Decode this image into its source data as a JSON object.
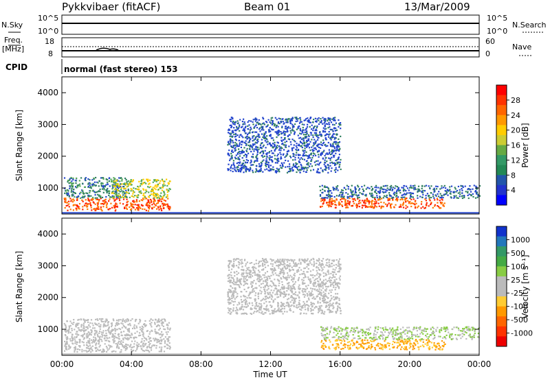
{
  "header": {
    "radar_title": "Pykkvibaer (fitACF)",
    "beam": "Beam 01",
    "date": "13/Mar/2009"
  },
  "panels": {
    "nsky": {
      "left_label": "N.Sky",
      "left_ticks": [
        "10^5",
        "10^0"
      ],
      "right_ticks": [
        "10^5",
        "10^0"
      ],
      "right_label": "N.Search"
    },
    "freq": {
      "left_label_line1": "Freq.",
      "left_label_line2": "[MHz]",
      "left_ticks": [
        "18",
        "8"
      ],
      "right_ticks": [
        "60",
        "0"
      ],
      "right_label": "Nave"
    },
    "cpid": {
      "label": "CPID",
      "text": "normal (fast stereo) 153"
    }
  },
  "axes": {
    "y_label": "Slant Range [km]",
    "y_ticks": [
      "4000",
      "3000",
      "2000",
      "1000"
    ],
    "x_label": "Time UT",
    "x_ticks": [
      "00:00",
      "04:00",
      "08:00",
      "12:00",
      "16:00",
      "20:00",
      "00:00"
    ]
  },
  "colorbars": {
    "power": {
      "label": "Power [dB]",
      "ticks": [
        "28",
        "24",
        "20",
        "16",
        "12",
        "8",
        "4"
      ],
      "colors": [
        "#ff0000",
        "#ff3300",
        "#ff6600",
        "#ff9900",
        "#ffcc00",
        "#cccc33",
        "#66aa44",
        "#339966",
        "#228855",
        "#2255aa",
        "#2233cc",
        "#0000ff"
      ]
    },
    "velocity": {
      "label": "Velocity [m s⁻¹]",
      "ticks": [
        "1000",
        "500",
        "100",
        "25",
        "-25",
        "-100",
        "-500",
        "-1000"
      ],
      "colors": [
        "#1133cc",
        "#2277bb",
        "#339966",
        "#44aa44",
        "#88cc44",
        "#bbbbbb",
        "#bbbbbb",
        "#ffcc33",
        "#ff9900",
        "#ff6600",
        "#ff3300",
        "#ee0000"
      ]
    }
  },
  "chart_data": [
    {
      "type": "heatmap",
      "quantity": "power",
      "xlim": [
        0,
        24
      ],
      "ylim": [
        180,
        4500
      ],
      "regions": [
        {
          "t0": 0.1,
          "t1": 6.2,
          "r0": 300,
          "r1": 700,
          "value": 24
        },
        {
          "t0": 0.1,
          "t1": 3.8,
          "r0": 700,
          "r1": 1350,
          "value": 10
        },
        {
          "t0": 2.8,
          "t1": 6.2,
          "r0": 700,
          "r1": 1300,
          "value": 16
        },
        {
          "t0": 9.5,
          "t1": 16.0,
          "r0": 1500,
          "r1": 3250,
          "value": 6
        },
        {
          "t0": 14.8,
          "t1": 22.0,
          "r0": 380,
          "r1": 700,
          "value": 24
        },
        {
          "t0": 14.8,
          "t1": 24.0,
          "r0": 700,
          "r1": 1100,
          "value": 8
        }
      ]
    },
    {
      "type": "heatmap",
      "quantity": "velocity",
      "xlim": [
        0,
        24
      ],
      "ylim": [
        180,
        4500
      ],
      "regions": [
        {
          "t0": 0.1,
          "t1": 6.2,
          "r0": 300,
          "r1": 1350,
          "value": 0
        },
        {
          "t0": 9.5,
          "t1": 16.0,
          "r0": 1500,
          "r1": 3250,
          "value": 0
        },
        {
          "t0": 14.8,
          "t1": 22.0,
          "r0": 380,
          "r1": 700,
          "value": -100
        },
        {
          "t0": 14.8,
          "t1": 24.0,
          "r0": 700,
          "r1": 1100,
          "value": 25
        }
      ]
    }
  ]
}
